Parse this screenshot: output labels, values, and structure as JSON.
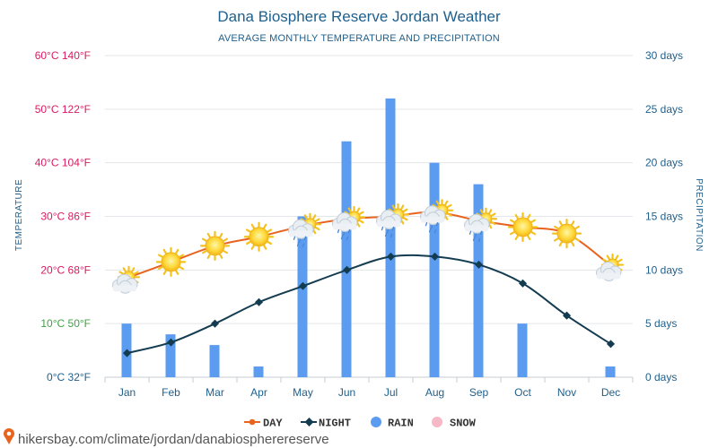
{
  "source_text": "hikersbay.com/climate/jordan/danabiospherereserve",
  "colors": {
    "day": "#e8641e",
    "night": "#143c50",
    "rain": "#5b9cf0",
    "snow": "#f6b8c6",
    "text": "#1f5f8b",
    "grid": "#e3e6ea"
  },
  "chart_data": {
    "type": "bar",
    "title": "Dana Biosphere Reserve Jordan Weather",
    "subtitle": "AVERAGE MONTHLY TEMPERATURE AND PRECIPITATION",
    "categories": [
      "Jan",
      "Feb",
      "Mar",
      "Apr",
      "May",
      "Jun",
      "Jul",
      "Aug",
      "Sep",
      "Oct",
      "Nov",
      "Dec"
    ],
    "y_left": {
      "label": "TEMPERATURE",
      "unit": "°C",
      "range": [
        0,
        60
      ],
      "ticks": [
        {
          "value": 60,
          "label": "60°C 140°F",
          "color": "#d81b60"
        },
        {
          "value": 50,
          "label": "50°C 122°F",
          "color": "#d81b60"
        },
        {
          "value": 40,
          "label": "40°C 104°F",
          "color": "#d81b60"
        },
        {
          "value": 30,
          "label": "30°C 86°F",
          "color": "#d81b60"
        },
        {
          "value": 20,
          "label": "20°C 68°F",
          "color": "#d81b60"
        },
        {
          "value": 10,
          "label": "10°C 50°F",
          "color": "#43a047"
        },
        {
          "value": 0,
          "label": "0°C 32°F",
          "color": "#1f5f8b"
        }
      ]
    },
    "y_right": {
      "label": "PRECIPITATION",
      "unit": "days",
      "range": [
        0,
        30
      ],
      "ticks": [
        {
          "value": 30,
          "label": "30 days"
        },
        {
          "value": 25,
          "label": "25 days"
        },
        {
          "value": 20,
          "label": "20 days"
        },
        {
          "value": 15,
          "label": "15 days"
        },
        {
          "value": 10,
          "label": "10 days"
        },
        {
          "value": 5,
          "label": "5 days"
        },
        {
          "value": 0,
          "label": "0 days"
        }
      ]
    },
    "series": [
      {
        "name": "DAY",
        "type": "line",
        "axis": "left",
        "values": [
          18.5,
          21.5,
          24.5,
          26.2,
          28.2,
          29.5,
          30.0,
          30.8,
          29.2,
          28.0,
          26.8,
          20.8
        ]
      },
      {
        "name": "NIGHT",
        "type": "line",
        "axis": "left",
        "values": [
          4.5,
          6.5,
          10.0,
          14.0,
          17.0,
          20.0,
          22.5,
          22.5,
          21.0,
          17.5,
          11.5,
          6.2
        ]
      },
      {
        "name": "RAIN",
        "type": "bar",
        "axis": "right",
        "values": [
          5,
          4,
          3,
          1,
          15,
          22,
          26,
          20,
          18,
          5,
          0,
          1
        ]
      },
      {
        "name": "SNOW",
        "type": "bar",
        "axis": "right",
        "values": [
          0,
          0,
          0,
          0,
          0,
          0,
          0,
          0,
          0,
          0,
          0,
          0
        ]
      }
    ],
    "weather_icons": [
      "sun-cloud-icon",
      "sun-icon",
      "sun-icon",
      "sun-icon",
      "sun-cloud-rain-icon",
      "sun-cloud-rain-icon",
      "sun-cloud-rain-icon",
      "sun-cloud-rain-icon",
      "sun-cloud-rain-icon",
      "sun-icon",
      "sun-icon",
      "sun-cloud-icon"
    ],
    "legend": {
      "position": "bottom-center",
      "items": [
        {
          "label": "DAY",
          "marker": "line-dot"
        },
        {
          "label": "NIGHT",
          "marker": "line-diamond"
        },
        {
          "label": "RAIN",
          "marker": "circle"
        },
        {
          "label": "SNOW",
          "marker": "circle"
        }
      ]
    },
    "grid": true
  }
}
